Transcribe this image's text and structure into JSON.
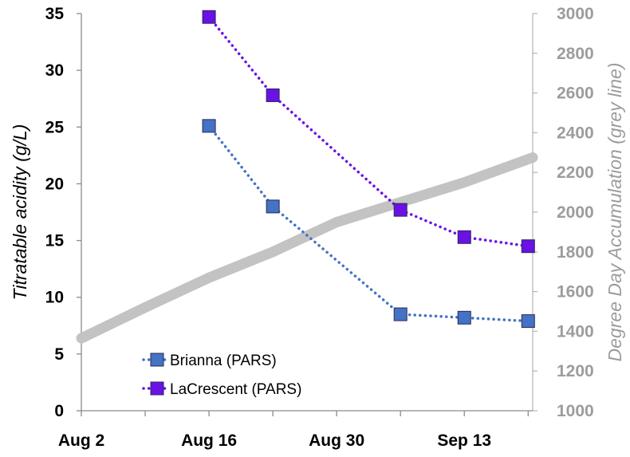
{
  "chart_data": {
    "type": "line",
    "title": "",
    "x_ticks": [
      "Aug 2",
      "Aug 16",
      "Aug 30",
      "Sep 13"
    ],
    "x_tick_days": [
      0,
      14,
      28,
      42
    ],
    "xlim_days": [
      0,
      49.5
    ],
    "ylabel": "Titratable acidity (g/L)",
    "ylim": [
      0,
      35
    ],
    "y_ticks": [
      0,
      5,
      10,
      15,
      20,
      25,
      30,
      35
    ],
    "y2label": "Degree Day Accumulation (grey line)",
    "y2lim": [
      1000,
      3000
    ],
    "y2_ticks": [
      1000,
      1200,
      1400,
      1600,
      1800,
      2000,
      2200,
      2400,
      2600,
      2800,
      3000
    ],
    "legend_position": "bottom-left",
    "series": [
      {
        "name": "Brianna (PARS)",
        "axis": "left",
        "color": "#4472c4",
        "style": "dotted-square-markers",
        "x_days": [
          14,
          21,
          35,
          42,
          49
        ],
        "values": [
          25.1,
          18.0,
          8.5,
          8.2,
          7.9
        ]
      },
      {
        "name": "LaCrescent (PARS)",
        "axis": "left",
        "color": "#6a11e6",
        "style": "dotted-square-markers",
        "x_days": [
          14,
          21,
          35,
          42,
          49
        ],
        "values": [
          34.7,
          27.8,
          17.7,
          15.3,
          14.5
        ]
      },
      {
        "name": "Degree Day Accumulation",
        "axis": "right",
        "color": "#c3c3c3",
        "style": "thick-line",
        "x_days": [
          0,
          7,
          14,
          21,
          28,
          35,
          42,
          49.5
        ],
        "values": [
          1365,
          1520,
          1670,
          1800,
          1950,
          2050,
          2150,
          2275
        ]
      }
    ]
  }
}
